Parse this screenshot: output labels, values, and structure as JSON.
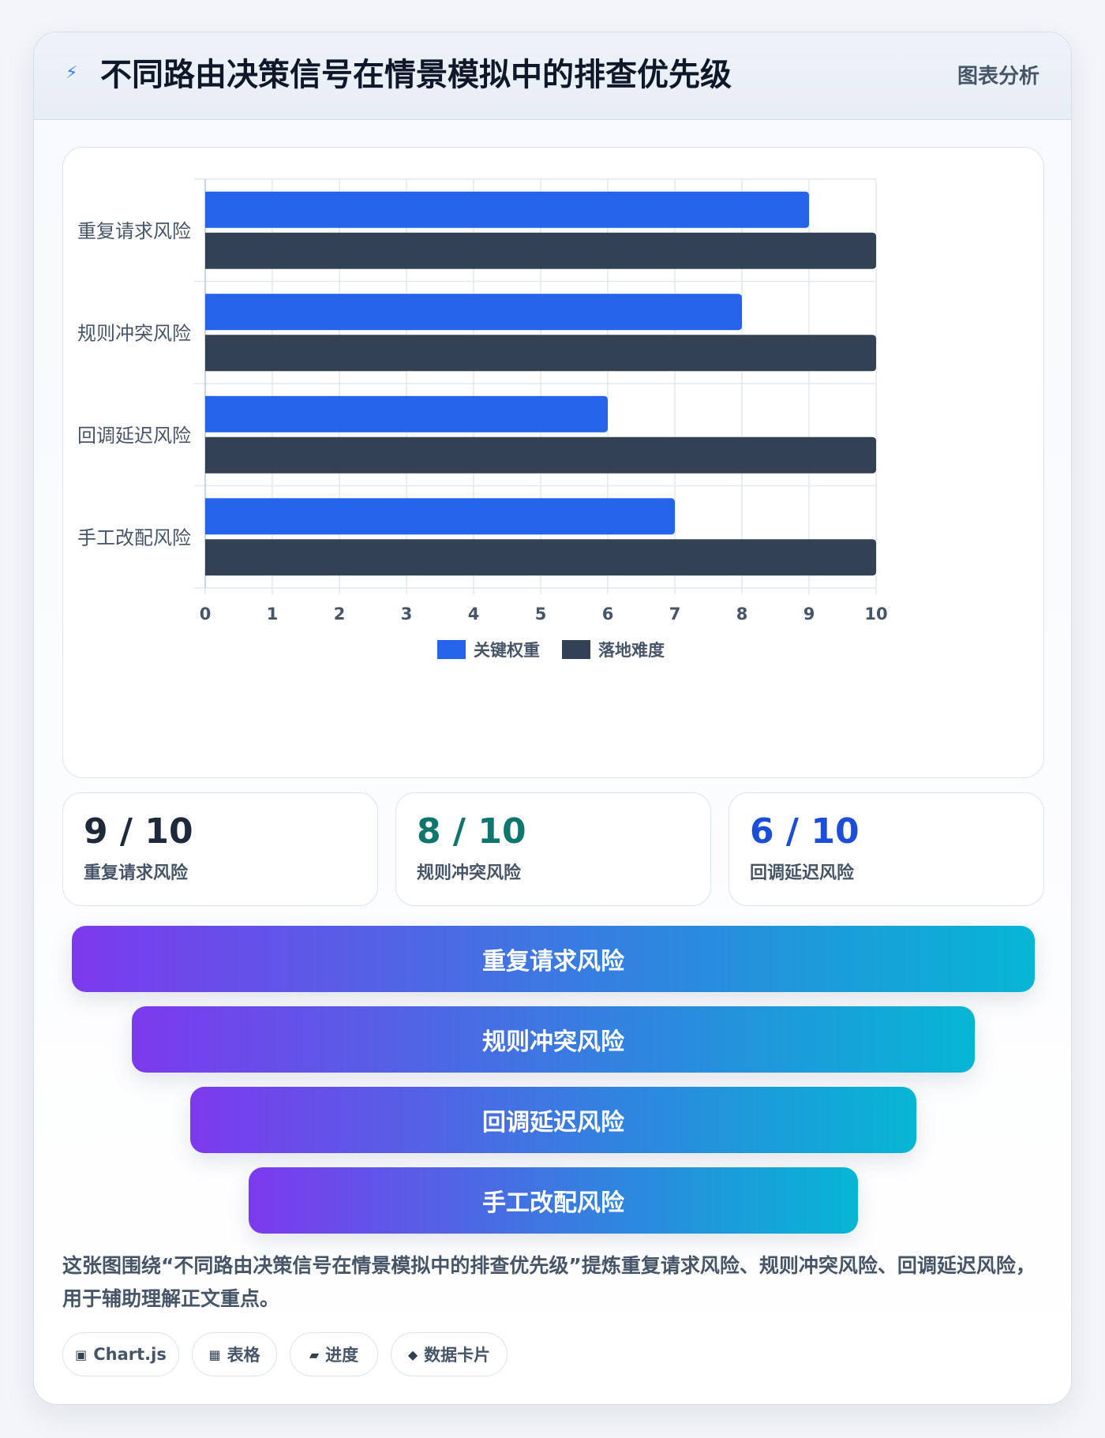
{
  "header": {
    "title": "不同路由决策信号在情景模拟中的排查优先级",
    "tag": "图表分析",
    "icon": "bolt-icon"
  },
  "chart_data": {
    "type": "bar",
    "orientation": "horizontal",
    "categories": [
      "重复请求风险",
      "规则冲突风险",
      "回调延迟风险",
      "手工改配风险"
    ],
    "series": [
      {
        "name": "关键权重",
        "values": [
          9,
          8,
          6,
          7
        ],
        "color": "#2563eb"
      },
      {
        "name": "落地难度",
        "values": [
          10,
          10,
          10,
          10
        ],
        "color": "#334155"
      }
    ],
    "xlim": [
      0,
      10
    ],
    "ticks": [
      "0",
      "1",
      "2",
      "3",
      "4",
      "5",
      "6",
      "7",
      "8",
      "9",
      "10"
    ],
    "grid": true,
    "legend_position": "bottom"
  },
  "stats": [
    {
      "value": "9 / 10",
      "label": "重复请求风险",
      "color": "#1e293b"
    },
    {
      "value": "8 / 10",
      "label": "规则冲突风险",
      "color": "#0f766e"
    },
    {
      "value": "6 / 10",
      "label": "回调延迟风险",
      "color": "#1d4ed8"
    }
  ],
  "funnel": [
    {
      "label": "重复请求风险"
    },
    {
      "label": "规则冲突风险"
    },
    {
      "label": "回调延迟风险"
    },
    {
      "label": "手工改配风险"
    }
  ],
  "summary": "这张图围绕“不同路由决策信号在情景模拟中的排查优先级”提炼重复请求风险、规则冲突风险、回调延迟风险，用于辅助理解正文重点。",
  "chips": [
    {
      "icon": "chart-icon",
      "glyph": "▣",
      "label": "Chart.js"
    },
    {
      "icon": "table-icon",
      "glyph": "▦",
      "label": "表格"
    },
    {
      "icon": "progress-icon",
      "glyph": "▰",
      "label": "进度"
    },
    {
      "icon": "card-icon",
      "glyph": "◆",
      "label": "数据卡片"
    }
  ]
}
